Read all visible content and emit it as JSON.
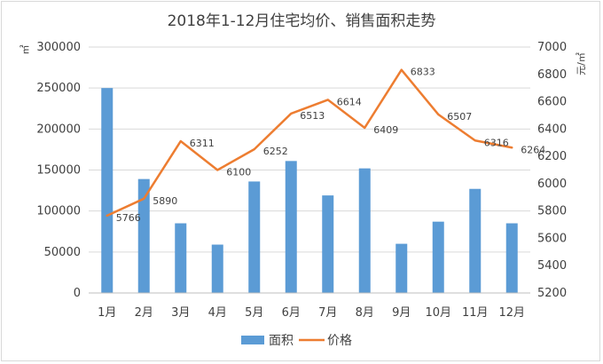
{
  "chart_data": {
    "type": "bar",
    "title": "2018年1-12月住宅均价、销售面积走势",
    "categories": [
      "1月",
      "2月",
      "3月",
      "4月",
      "5月",
      "6月",
      "7月",
      "8月",
      "9月",
      "10月",
      "11月",
      "12月"
    ],
    "y_left_label": "㎡",
    "y_right_label": "元/㎡",
    "y_left_range": [
      0,
      300000
    ],
    "y_left_ticks": [
      "0",
      "50000",
      "100000",
      "150000",
      "200000",
      "250000",
      "300000"
    ],
    "y_right_range": [
      5200,
      7000
    ],
    "y_right_ticks": [
      "5200",
      "5400",
      "5600",
      "5800",
      "6000",
      "6200",
      "6400",
      "6600",
      "6800",
      "7000"
    ],
    "grid": true,
    "legend_position": "bottom",
    "series": [
      {
        "name": "面积",
        "type": "bar",
        "axis": "left",
        "color": "#5b9bd5",
        "values": [
          250000,
          139000,
          85000,
          59000,
          136000,
          161000,
          119000,
          152000,
          60000,
          87000,
          127000,
          85000
        ]
      },
      {
        "name": "价格",
        "type": "line",
        "axis": "right",
        "color": "#ed7d31",
        "values": [
          5766,
          5890,
          6311,
          6100,
          6252,
          6513,
          6614,
          6409,
          6833,
          6507,
          6316,
          6264
        ],
        "labels": [
          "5766",
          "5890",
          "6311",
          "6100",
          "6252",
          "6513",
          "6614",
          "6409",
          "6833",
          "6507",
          "6316",
          "6264"
        ]
      }
    ]
  }
}
